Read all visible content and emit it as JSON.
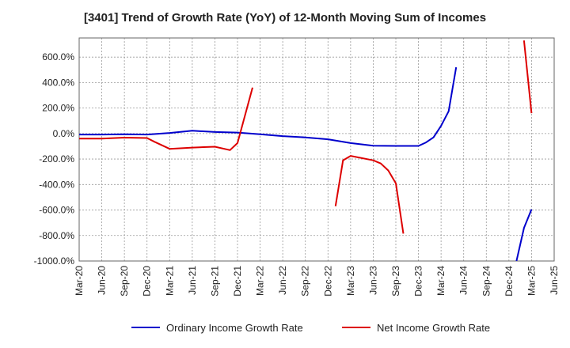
{
  "chart_data": {
    "type": "line",
    "title": "[3401]  Trend of Growth Rate (YoY) of 12-Month Moving Sum of Incomes",
    "xlabel": "",
    "ylabel": "",
    "ylim": [
      -1000,
      750
    ],
    "yticks": [
      600,
      400,
      200,
      0,
      -200,
      -400,
      -600,
      -800,
      -1000
    ],
    "ytick_labels": [
      "600.0%",
      "400.0%",
      "200.0%",
      "0.0%",
      "-200.0%",
      "-400.0%",
      "-600.0%",
      "-800.0%",
      "-1000.0%"
    ],
    "x_start": "Mar-20",
    "x_end": "Jun-25",
    "xtick_labels": [
      "Mar-20",
      "Jun-20",
      "Sep-20",
      "Dec-20",
      "Mar-21",
      "Jun-21",
      "Sep-21",
      "Dec-21",
      "Mar-22",
      "Jun-22",
      "Sep-22",
      "Dec-22",
      "Mar-23",
      "Jun-23",
      "Sep-23",
      "Dec-23",
      "Mar-24",
      "Jun-24",
      "Sep-24",
      "Dec-24",
      "Mar-25",
      "Jun-25"
    ],
    "grid": true,
    "legend_position": "bottom",
    "series": [
      {
        "name": "Ordinary Income Growth Rate",
        "color": "#0000cc",
        "points": [
          [
            "Mar-20",
            -8
          ],
          [
            "Jun-20",
            -8
          ],
          [
            "Sep-20",
            -5
          ],
          [
            "Dec-20",
            -8
          ],
          [
            "Mar-21",
            5
          ],
          [
            "Jun-21",
            22
          ],
          [
            "Sep-21",
            12
          ],
          [
            "Dec-21",
            8
          ],
          [
            "Mar-22",
            -5
          ],
          [
            "Jun-22",
            -20
          ],
          [
            "Sep-22",
            -30
          ],
          [
            "Dec-22",
            -45
          ],
          [
            "Mar-23",
            -75
          ],
          [
            "Jun-23",
            -95
          ],
          [
            "Sep-23",
            -97
          ],
          [
            "Dec-23",
            -97
          ],
          [
            "Jan-24",
            -70
          ],
          [
            "Feb-24",
            -30
          ],
          [
            "Mar-24",
            60
          ],
          [
            "Apr-24",
            175
          ],
          [
            "May-24",
            520
          ]
        ],
        "points_2": [
          [
            "Jan-25",
            -1000
          ],
          [
            "Feb-25",
            -740
          ],
          [
            "Mar-25",
            -595
          ]
        ]
      },
      {
        "name": "Net Income Growth Rate",
        "color": "#dd0000",
        "points": [
          [
            "Mar-20",
            -40
          ],
          [
            "Jun-20",
            -40
          ],
          [
            "Sep-20",
            -32
          ],
          [
            "Dec-20",
            -35
          ],
          [
            "Jan-21",
            -65
          ],
          [
            "Mar-21",
            -120
          ],
          [
            "Jun-21",
            -110
          ],
          [
            "Sep-21",
            -103
          ],
          [
            "Nov-21",
            -130
          ],
          [
            "Dec-21",
            -75
          ],
          [
            "Feb-22",
            360
          ]
        ],
        "points_2": [
          [
            "Jan-23",
            -570
          ],
          [
            "Feb-23",
            -210
          ],
          [
            "Mar-23",
            -175
          ],
          [
            "Jun-23",
            -210
          ],
          [
            "Jul-23",
            -235
          ],
          [
            "Aug-23",
            -290
          ],
          [
            "Sep-23",
            -390
          ],
          [
            "Oct-23",
            -785
          ]
        ],
        "points_3": [
          [
            "Feb-25",
            730
          ],
          [
            "Mar-25",
            160
          ]
        ]
      }
    ]
  }
}
